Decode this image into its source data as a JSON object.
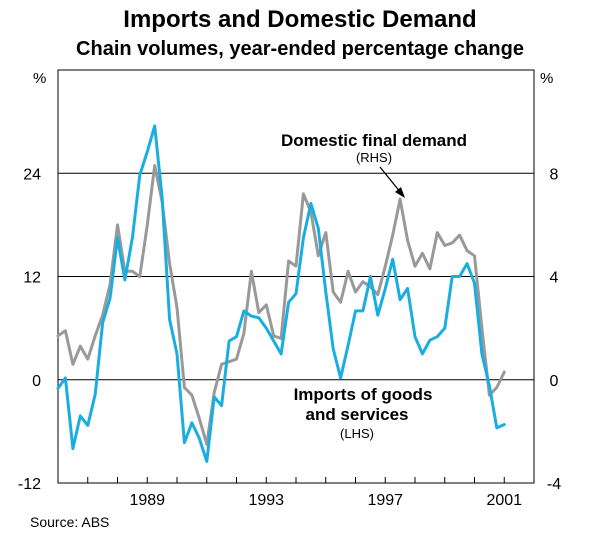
{
  "chart_data": {
    "type": "line",
    "title": "Imports and Domestic Demand",
    "subtitle": "Chain volumes, year-ended percentage change",
    "left_axis": {
      "unit": "%",
      "range": [
        -12,
        36
      ],
      "ticks": [
        "-12",
        "0",
        "12",
        "24"
      ],
      "tick_values": [
        -12,
        0,
        12,
        24
      ]
    },
    "right_axis": {
      "unit": "%",
      "range": [
        -4,
        12
      ],
      "ticks": [
        "-4",
        "0",
        "4",
        "8"
      ],
      "tick_values": [
        -4,
        0,
        4,
        8
      ]
    },
    "x_axis": {
      "range": [
        1986.0,
        2002.0
      ],
      "ticks": [
        "1989",
        "1993",
        "1997",
        "2001"
      ],
      "tick_values": [
        1989,
        1993,
        1997,
        2001
      ]
    },
    "series": [
      {
        "name": "Imports of goods and services",
        "axis": "left",
        "label_line1": "Imports of goods",
        "label_line2": "and services",
        "label_axis": "(LHS)",
        "color": "#1aaee0",
        "x": [
          1986.0,
          1986.25,
          1986.5,
          1986.75,
          1987.0,
          1987.25,
          1987.5,
          1987.75,
          1988.0,
          1988.25,
          1988.5,
          1988.75,
          1989.0,
          1989.25,
          1989.5,
          1989.75,
          1990.0,
          1990.25,
          1990.5,
          1990.75,
          1991.0,
          1991.25,
          1991.5,
          1991.75,
          1992.0,
          1992.25,
          1992.5,
          1992.75,
          1993.0,
          1993.25,
          1993.5,
          1993.75,
          1994.0,
          1994.25,
          1994.5,
          1994.75,
          1995.0,
          1995.25,
          1995.5,
          1995.75,
          1996.0,
          1996.25,
          1996.5,
          1996.75,
          1997.0,
          1997.25,
          1997.5,
          1997.75,
          1998.0,
          1998.25,
          1998.5,
          1998.75,
          1999.0,
          1999.25,
          1999.5,
          1999.75,
          2000.0,
          2000.25,
          2000.5,
          2000.75,
          2001.0
        ],
        "values": [
          -1.0,
          0.2,
          -8.0,
          -4.2,
          -5.3,
          -1.7,
          6.6,
          9.5,
          16.5,
          11.6,
          16.5,
          23.8,
          26.5,
          29.5,
          21.2,
          7.0,
          3.0,
          -7.3,
          -5.0,
          -6.8,
          -9.5,
          -2.0,
          -3.0,
          4.5,
          5.0,
          8.0,
          7.4,
          7.2,
          6.0,
          4.5,
          3.0,
          9.0,
          10.0,
          16.5,
          20.5,
          17.6,
          10.2,
          3.6,
          0.2,
          4.0,
          8.0,
          8.0,
          12.0,
          7.5,
          10.6,
          14.0,
          9.3,
          10.6,
          5.0,
          3.0,
          4.6,
          5.0,
          6.0,
          12.0,
          12.0,
          13.5,
          11.2,
          3.0,
          -0.7,
          -5.6,
          -5.2
        ]
      },
      {
        "name": "Domestic final demand",
        "axis": "right",
        "label_line1": "Domestic final demand",
        "label_axis": "(RHS)",
        "color": "#999999",
        "x": [
          1986.0,
          1986.25,
          1986.5,
          1986.75,
          1987.0,
          1987.25,
          1987.5,
          1987.75,
          1988.0,
          1988.25,
          1988.5,
          1988.75,
          1989.0,
          1989.25,
          1989.5,
          1989.75,
          1990.0,
          1990.25,
          1990.5,
          1990.75,
          1991.0,
          1991.25,
          1991.5,
          1991.75,
          1992.0,
          1992.25,
          1992.5,
          1992.75,
          1993.0,
          1993.25,
          1993.5,
          1993.75,
          1994.0,
          1994.25,
          1994.5,
          1994.75,
          1995.0,
          1995.25,
          1995.5,
          1995.75,
          1996.0,
          1996.25,
          1996.5,
          1996.75,
          1997.0,
          1997.25,
          1997.5,
          1997.75,
          1998.0,
          1998.25,
          1998.5,
          1998.75,
          1999.0,
          1999.25,
          1999.5,
          1999.75,
          2000.0,
          2000.25,
          2000.5,
          2000.75,
          2001.0
        ],
        "values": [
          1.7,
          1.9,
          0.6,
          1.3,
          0.8,
          1.7,
          2.5,
          3.7,
          6.0,
          4.2,
          4.2,
          4.0,
          6.0,
          8.3,
          6.9,
          4.5,
          2.8,
          -0.3,
          -0.6,
          -1.5,
          -2.5,
          -0.5,
          0.6,
          0.7,
          0.8,
          1.8,
          4.2,
          2.6,
          2.9,
          1.7,
          1.6,
          4.6,
          4.4,
          7.2,
          6.5,
          4.8,
          5.7,
          3.4,
          3.0,
          4.2,
          3.4,
          3.8,
          3.6,
          3.3,
          4.4,
          5.6,
          7.0,
          5.4,
          4.4,
          4.9,
          4.3,
          5.7,
          5.2,
          5.3,
          5.6,
          5.0,
          4.8,
          2.0,
          -0.6,
          -0.3,
          0.3
        ]
      }
    ],
    "annotation_arrow": "Domestic final demand label points to RHS series near 1997",
    "source": "Source: ABS"
  }
}
